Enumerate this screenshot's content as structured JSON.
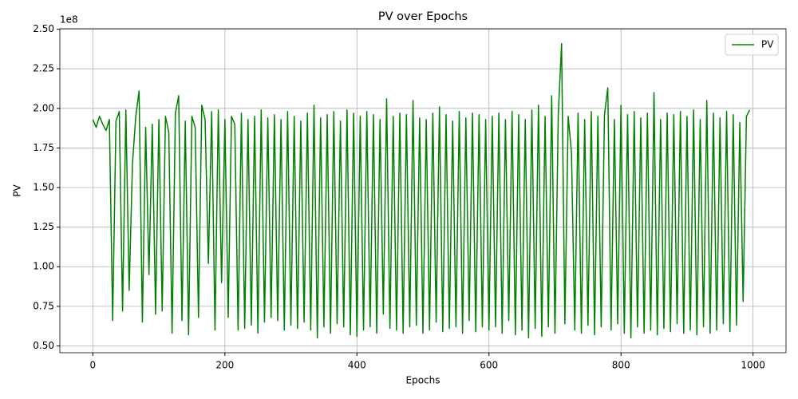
{
  "chart_data": {
    "type": "line",
    "title": "PV over Epochs",
    "x_label": "Epochs",
    "y_label": "PV",
    "y_offset_label": "1e8",
    "x": [
      0,
      5,
      10,
      15,
      20,
      25,
      30,
      35,
      40,
      45,
      50,
      55,
      60,
      65,
      70,
      75,
      80,
      85,
      90,
      95,
      100,
      105,
      110,
      115,
      120,
      125,
      130,
      135,
      140,
      145,
      150,
      155,
      160,
      165,
      170,
      175,
      180,
      185,
      190,
      195,
      200,
      205,
      210,
      215,
      220,
      225,
      230,
      235,
      240,
      245,
      250,
      255,
      260,
      265,
      270,
      275,
      280,
      285,
      290,
      295,
      300,
      305,
      310,
      315,
      320,
      325,
      330,
      335,
      340,
      345,
      350,
      355,
      360,
      365,
      370,
      375,
      380,
      385,
      390,
      395,
      400,
      405,
      410,
      415,
      420,
      425,
      430,
      435,
      440,
      445,
      450,
      455,
      460,
      465,
      470,
      475,
      480,
      485,
      490,
      495,
      500,
      505,
      510,
      515,
      520,
      525,
      530,
      535,
      540,
      545,
      550,
      555,
      560,
      565,
      570,
      575,
      580,
      585,
      590,
      595,
      600,
      605,
      610,
      615,
      620,
      625,
      630,
      635,
      640,
      645,
      650,
      655,
      660,
      665,
      670,
      675,
      680,
      685,
      690,
      695,
      700,
      705,
      710,
      715,
      720,
      725,
      730,
      735,
      740,
      745,
      750,
      755,
      760,
      765,
      770,
      775,
      780,
      785,
      790,
      795,
      800,
      805,
      810,
      815,
      820,
      825,
      830,
      835,
      840,
      845,
      850,
      855,
      860,
      865,
      870,
      875,
      880,
      885,
      890,
      895,
      900,
      905,
      910,
      915,
      920,
      925,
      930,
      935,
      940,
      945,
      950,
      955,
      960,
      965,
      970,
      975,
      980,
      985,
      990,
      995
    ],
    "series": [
      {
        "name": "PV",
        "color": "#008000",
        "values": [
          1.93,
          1.88,
          1.95,
          1.9,
          1.86,
          1.93,
          0.66,
          1.92,
          1.98,
          0.72,
          1.99,
          0.85,
          1.65,
          1.95,
          2.11,
          0.65,
          1.88,
          0.95,
          1.9,
          0.7,
          1.93,
          0.72,
          1.95,
          1.85,
          0.58,
          1.97,
          2.08,
          0.66,
          1.92,
          0.57,
          1.95,
          1.88,
          0.68,
          2.02,
          1.93,
          1.02,
          1.98,
          0.6,
          1.99,
          0.9,
          1.93,
          0.68,
          1.95,
          1.9,
          0.6,
          1.97,
          0.61,
          1.93,
          0.63,
          1.95,
          0.58,
          1.99,
          0.65,
          1.94,
          0.68,
          1.96,
          0.66,
          1.93,
          0.6,
          1.98,
          0.63,
          1.95,
          0.61,
          1.92,
          0.65,
          1.97,
          0.6,
          2.02,
          0.55,
          1.94,
          0.62,
          1.96,
          0.58,
          1.98,
          0.64,
          1.92,
          0.62,
          1.99,
          0.57,
          1.97,
          0.56,
          1.95,
          0.6,
          1.98,
          0.62,
          1.96,
          0.58,
          1.93,
          0.7,
          2.06,
          0.61,
          1.95,
          0.6,
          1.97,
          0.58,
          1.96,
          0.62,
          2.05,
          0.63,
          1.94,
          0.58,
          1.93,
          0.6,
          1.97,
          0.65,
          2.01,
          0.59,
          1.96,
          0.61,
          1.92,
          0.62,
          1.98,
          0.58,
          1.94,
          0.66,
          1.97,
          0.59,
          1.96,
          0.62,
          1.93,
          0.6,
          1.95,
          0.62,
          1.97,
          0.58,
          1.93,
          0.66,
          1.98,
          0.57,
          1.96,
          0.6,
          1.93,
          0.55,
          1.99,
          0.61,
          2.02,
          0.56,
          1.95,
          0.62,
          2.08,
          0.58,
          1.96,
          2.41,
          0.64,
          1.95,
          1.72,
          0.6,
          1.97,
          0.58,
          1.93,
          0.63,
          1.98,
          0.57,
          1.95,
          0.62,
          1.96,
          2.13,
          0.6,
          1.93,
          0.64,
          2.02,
          0.58,
          1.96,
          0.55,
          1.98,
          0.62,
          1.94,
          0.58,
          1.97,
          0.6,
          2.1,
          0.57,
          1.93,
          0.61,
          1.97,
          0.59,
          1.96,
          0.64,
          1.98,
          0.58,
          1.95,
          0.6,
          1.99,
          0.57,
          1.93,
          0.62,
          2.05,
          0.58,
          1.97,
          0.6,
          1.94,
          0.64,
          1.98,
          0.59,
          1.96,
          0.63,
          1.91,
          0.78,
          1.95,
          1.99
        ]
      }
    ],
    "xlim": [
      -50,
      1050
    ],
    "ylim": [
      0.457,
      2.503
    ],
    "xticks": [
      0,
      200,
      400,
      600,
      800,
      1000
    ],
    "yticks": [
      {
        "value": 0.5,
        "label": "0.50"
      },
      {
        "value": 0.75,
        "label": "0.75"
      },
      {
        "value": 1.0,
        "label": "1.00"
      },
      {
        "value": 1.25,
        "label": "1.25"
      },
      {
        "value": 1.5,
        "label": "1.50"
      },
      {
        "value": 1.75,
        "label": "1.75"
      },
      {
        "value": 2.0,
        "label": "2.00"
      },
      {
        "value": 2.25,
        "label": "2.25"
      },
      {
        "value": 2.5,
        "label": "2.50"
      }
    ],
    "grid": true,
    "legend": "upper-right"
  }
}
